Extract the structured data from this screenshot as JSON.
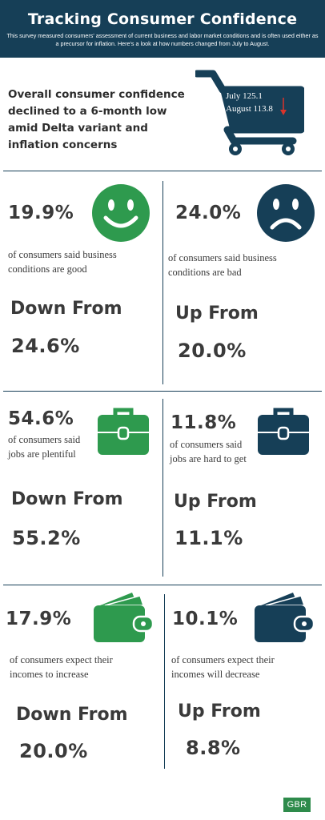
{
  "header": {
    "title": "Tracking Consumer Confidence",
    "subtitle": "This survey measured consumers' assessment of current business and labor market conditions and is often used either as a precursor for inflation. Here's a look at how numbers changed from July to August."
  },
  "headline": "Overall consumer confidence declined to a 6-month low amid Delta variant and inflation concerns",
  "cart": {
    "july": "July 125.1",
    "august": "August 113.8"
  },
  "colors": {
    "navy": "#163f57",
    "green": "#2e9a4e",
    "arrow": "#d9342b"
  },
  "sections": [
    {
      "left": {
        "icon": "smiley-face-icon",
        "pct": "19.9%",
        "desc_1": "of consumers said business",
        "desc_2": "conditions are good",
        "direction": "Down From",
        "previous": "24.6%"
      },
      "right": {
        "icon": "sad-face-icon",
        "pct": "24.0%",
        "desc_1": "of consumers said business",
        "desc_2": "conditions are bad",
        "direction": "Up From",
        "previous": "20.0%"
      }
    },
    {
      "left": {
        "icon": "briefcase-icon",
        "pct": "54.6%",
        "desc_1": "of consumers said",
        "desc_2": "jobs are plentiful",
        "direction": "Down From",
        "previous": "55.2%"
      },
      "right": {
        "icon": "briefcase-icon",
        "pct": "11.8%",
        "desc_1": "of consumers said",
        "desc_2": "jobs are hard to get",
        "direction": "Up From",
        "previous": "11.1%"
      }
    },
    {
      "left": {
        "icon": "wallet-icon",
        "pct": "17.9%",
        "desc_1": "of consumers expect their",
        "desc_2": "incomes to increase",
        "direction": "Down From",
        "previous": "20.0%"
      },
      "right": {
        "icon": "wallet-icon",
        "pct": "10.1%",
        "desc_1": "of consumers expect their",
        "desc_2": "incomes will decrease",
        "direction": "Up From",
        "previous": "8.8%"
      }
    }
  ],
  "footer": {
    "logo": "GBR"
  }
}
